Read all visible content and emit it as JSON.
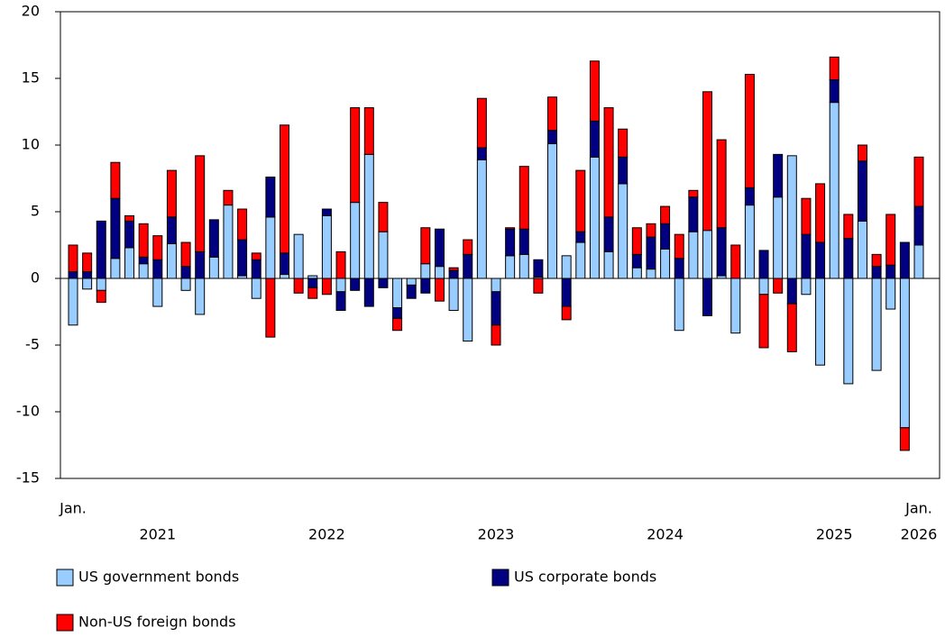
{
  "chart_data": {
    "type": "stacked-bar",
    "categories": [
      "Jan.",
      null,
      null,
      null,
      null,
      null,
      null,
      null,
      null,
      null,
      null,
      null,
      null,
      null,
      null,
      null,
      null,
      null,
      null,
      null,
      null,
      null,
      null,
      null,
      null,
      null,
      null,
      null,
      null,
      null,
      null,
      null,
      null,
      null,
      null,
      null,
      null,
      null,
      null,
      null,
      null,
      null,
      null,
      null,
      null,
      null,
      null,
      null,
      null,
      null,
      null,
      null,
      null,
      null,
      null,
      null,
      null,
      null,
      null,
      null,
      "Jan."
    ],
    "category_years": [
      null,
      null,
      null,
      null,
      null,
      null,
      "2021",
      null,
      null,
      null,
      null,
      null,
      null,
      null,
      null,
      null,
      null,
      null,
      "2022",
      null,
      null,
      null,
      null,
      null,
      null,
      null,
      null,
      null,
      null,
      null,
      "2023",
      null,
      null,
      null,
      null,
      null,
      null,
      null,
      null,
      null,
      null,
      null,
      "2024",
      null,
      null,
      null,
      null,
      null,
      null,
      null,
      null,
      null,
      null,
      null,
      "2025",
      null,
      null,
      null,
      null,
      null,
      "2026"
    ],
    "series": [
      {
        "name": "US government bonds",
        "color": "#99ccff",
        "values": [
          -3.5,
          -0.8,
          -0.9,
          1.5,
          2.3,
          1.1,
          -2.1,
          2.6,
          -0.9,
          -2.7,
          1.6,
          5.5,
          0.2,
          -1.5,
          4.6,
          0.3,
          3.3,
          0.2,
          4.7,
          -1.0,
          5.7,
          9.3,
          3.5,
          -2.2,
          -0.5,
          1.1,
          0.9,
          -2.4,
          -4.7,
          8.9,
          -1.0,
          1.7,
          1.8,
          0.1,
          10.1,
          1.7,
          2.7,
          9.1,
          2.0,
          7.1,
          0.8,
          0.7,
          2.2,
          -3.9,
          3.5,
          3.6,
          0.2,
          -4.1,
          5.5,
          -1.2,
          6.1,
          9.2,
          -1.2,
          -6.5,
          13.2,
          -7.9,
          4.3,
          -6.9,
          -2.3,
          -11.2,
          2.5
        ]
      },
      {
        "name": "US corporate bonds",
        "color": "#000080",
        "values": [
          0.5,
          0.5,
          4.3,
          4.5,
          2.0,
          0.5,
          1.4,
          2.0,
          0.9,
          2.0,
          2.8,
          0.0,
          2.7,
          1.4,
          3.0,
          1.6,
          0.0,
          -0.7,
          0.5,
          -1.4,
          -0.9,
          -2.1,
          -0.7,
          -0.8,
          -1.0,
          -1.1,
          2.8,
          0.6,
          1.8,
          0.9,
          -2.5,
          2.0,
          1.9,
          1.3,
          1.0,
          -2.1,
          0.8,
          2.7,
          2.6,
          2.0,
          1.0,
          2.4,
          1.9,
          1.5,
          2.6,
          -2.8,
          3.6,
          0.0,
          1.3,
          2.1,
          3.2,
          -1.9,
          3.3,
          2.7,
          1.7,
          3.0,
          4.5,
          0.9,
          1.0,
          2.7,
          2.9
        ]
      },
      {
        "name": "Non-US foreign bonds",
        "color": "#ff0000",
        "values": [
          2.0,
          1.4,
          -0.9,
          2.7,
          0.4,
          2.5,
          1.8,
          3.5,
          1.8,
          7.2,
          0.0,
          1.1,
          2.3,
          0.5,
          -4.4,
          9.6,
          -1.1,
          -0.8,
          -1.2,
          2.0,
          7.1,
          3.5,
          2.2,
          -0.9,
          0.0,
          2.7,
          -1.7,
          0.2,
          1.1,
          3.7,
          -1.5,
          0.1,
          4.7,
          -1.1,
          2.5,
          -1.0,
          4.6,
          4.5,
          8.2,
          2.1,
          2.0,
          1.0,
          1.3,
          1.8,
          0.5,
          10.4,
          6.6,
          2.5,
          8.5,
          -4.0,
          -1.1,
          -3.6,
          2.7,
          4.4,
          1.7,
          1.8,
          1.2,
          0.9,
          3.8,
          -1.7,
          3.7
        ]
      }
    ],
    "ylim": [
      -15,
      20
    ],
    "yticks": [
      -15,
      -10,
      -5,
      0,
      5,
      10,
      15,
      20
    ]
  }
}
